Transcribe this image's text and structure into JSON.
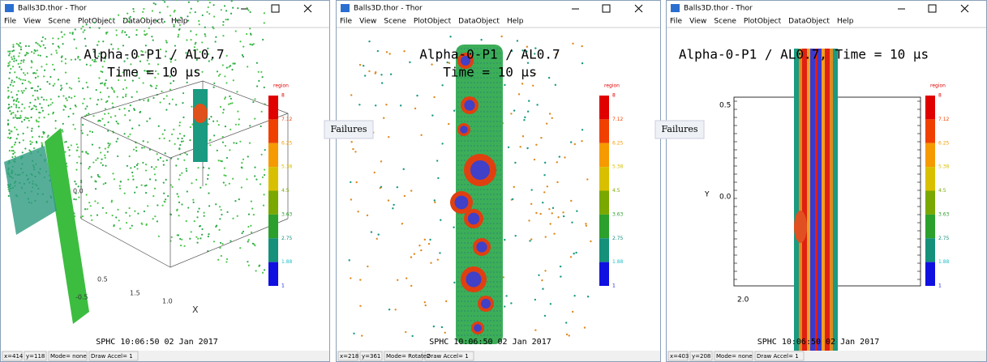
{
  "windows": [
    {
      "title": "Balls3D.thor - Thor",
      "menu": [
        "File",
        "View",
        "Scene",
        "PlotObject",
        "DataObject",
        "Help"
      ],
      "plot_title": "Alpha-0-P1 / AL0.7",
      "plot_subtitle": "Time = 10 μs",
      "colorbar": {
        "label": "region",
        "ticks": [
          "8",
          "7.12",
          "6.25",
          "5.38",
          "4.5",
          "3.63",
          "2.75",
          "1.88",
          "1"
        ]
      },
      "axis_labels": [
        "X",
        "1.0",
        "1.5",
        "0.5",
        "-0.5",
        "0.0"
      ],
      "footer": "SPHC  10:06:50 02 Jan 2017",
      "status": [
        "x=414",
        "y=118",
        "Mode= none",
        "Draw Accel= 1"
      ]
    },
    {
      "title": "Balls3D.thor - Thor",
      "menu": [
        "File",
        "View",
        "Scene",
        "PlotObject",
        "DataObject",
        "Help"
      ],
      "plot_title": "Alpha-0-P1 / AL0.7",
      "plot_subtitle": "Time = 10 μs",
      "colorbar": {
        "label": "region",
        "ticks": [
          "8",
          "7.12",
          "6.25",
          "5.38",
          "4.5",
          "3.63",
          "2.75",
          "1.88",
          "1"
        ]
      },
      "axis_labels": [],
      "footer": "SPHC  10:06:50 02 Jan 2017",
      "status": [
        "x=218",
        "y=361",
        "Mode= Rotate2",
        "Draw Accel= 1"
      ]
    },
    {
      "title": "Balls3D.thor - Thor",
      "menu": [
        "File",
        "View",
        "Scene",
        "PlotObject",
        "DataObject",
        "Help"
      ],
      "plot_title": "Alpha-0-P1 / AL0.7, Time = 10 μs",
      "colorbar": {
        "label": "region",
        "ticks": [
          "8",
          "7.12",
          "6.25",
          "5.38",
          "4.5",
          "3.63",
          "2.75",
          "1.88",
          "1"
        ]
      },
      "axis_labels": [
        "0.5",
        "0.0",
        "Y",
        "2.0"
      ],
      "footer": "SPHC  10:06:50 02 Jan 2017",
      "status": [
        "x=403",
        "y=208",
        "Mode= none",
        "Draw Accel= 1"
      ]
    }
  ],
  "annotations": [
    "Failures",
    "Failures"
  ]
}
